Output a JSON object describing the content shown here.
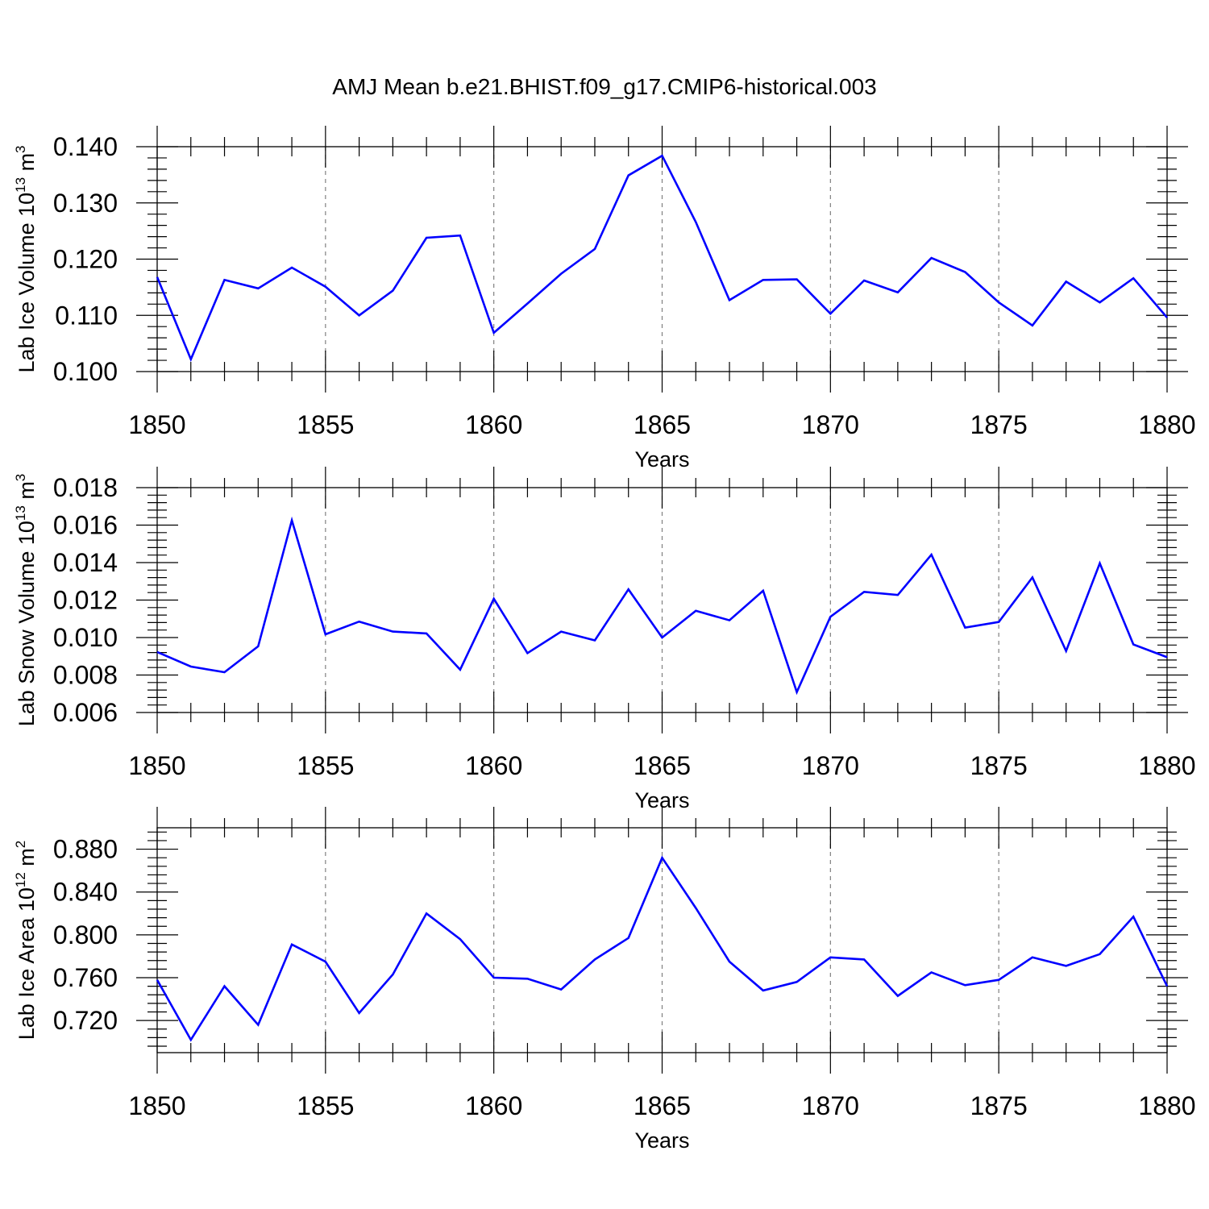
{
  "title": "AMJ Mean b.e21.BHIST.f09_g17.CMIP6-historical.003",
  "colors": {
    "line": "#0000ff",
    "axis": "#000000",
    "grid": "#808080"
  },
  "chart_data": [
    {
      "type": "line",
      "xlabel": "Years",
      "ylabel": {
        "text": "Lab Ice Volume 10",
        "exp": "13",
        "unit": " m",
        "unit_exp": "3"
      },
      "xlim": [
        1850,
        1880
      ],
      "ylim": [
        0.1,
        0.14
      ],
      "xticks": [
        1850,
        1855,
        1860,
        1865,
        1870,
        1875,
        1880
      ],
      "xtick_labels": [
        "1850",
        "1855",
        "1860",
        "1865",
        "1870",
        "1875",
        "1880"
      ],
      "yticks": [
        0.1,
        0.11,
        0.12,
        0.13,
        0.14
      ],
      "ytick_labels": [
        "0.100",
        "0.110",
        "0.120",
        "0.130",
        "0.140"
      ],
      "grid": "vertical dashed at major x ticks",
      "x": [
        1850,
        1851,
        1852,
        1853,
        1854,
        1855,
        1856,
        1857,
        1858,
        1859,
        1860,
        1861,
        1862,
        1863,
        1864,
        1865,
        1866,
        1867,
        1868,
        1869,
        1870,
        1871,
        1872,
        1873,
        1874,
        1875,
        1876,
        1877,
        1878,
        1879,
        1880
      ],
      "values": [
        0.1168,
        0.1022,
        0.1163,
        0.1148,
        0.1185,
        0.1151,
        0.11,
        0.1144,
        0.1238,
        0.1242,
        0.1069,
        0.1121,
        0.1174,
        0.1218,
        0.1349,
        0.1384,
        0.1266,
        0.1127,
        0.1163,
        0.1164,
        0.1103,
        0.1162,
        0.1141,
        0.1202,
        0.1177,
        0.1123,
        0.1082,
        0.116,
        0.1123,
        0.1166,
        0.1096
      ]
    },
    {
      "type": "line",
      "xlabel": "Years",
      "ylabel": {
        "text": "Lab Snow Volume 10",
        "exp": "13",
        "unit": " m",
        "unit_exp": "3"
      },
      "xlim": [
        1850,
        1880
      ],
      "ylim": [
        0.006,
        0.018
      ],
      "xticks": [
        1850,
        1855,
        1860,
        1865,
        1870,
        1875,
        1880
      ],
      "xtick_labels": [
        "1850",
        "1855",
        "1860",
        "1865",
        "1870",
        "1875",
        "1880"
      ],
      "yticks": [
        0.006,
        0.008,
        0.01,
        0.012,
        0.014,
        0.016,
        0.018
      ],
      "ytick_labels": [
        "0.006",
        "0.008",
        "0.010",
        "0.012",
        "0.014",
        "0.016",
        "0.018"
      ],
      "grid": "vertical dashed at major x ticks",
      "x": [
        1850,
        1851,
        1852,
        1853,
        1854,
        1855,
        1856,
        1857,
        1858,
        1859,
        1860,
        1861,
        1862,
        1863,
        1864,
        1865,
        1866,
        1867,
        1868,
        1869,
        1870,
        1871,
        1872,
        1873,
        1874,
        1875,
        1876,
        1877,
        1878,
        1879,
        1880
      ],
      "values": [
        0.00923,
        0.00845,
        0.00815,
        0.00953,
        0.01626,
        0.01017,
        0.01085,
        0.01032,
        0.01022,
        0.00829,
        0.01207,
        0.00917,
        0.01032,
        0.00985,
        0.01257,
        0.01,
        0.01143,
        0.01092,
        0.0125,
        0.00709,
        0.01111,
        0.01244,
        0.01227,
        0.01442,
        0.01053,
        0.01083,
        0.01321,
        0.00928,
        0.01396,
        0.00963,
        0.00895
      ]
    },
    {
      "type": "line",
      "xlabel": "Years",
      "ylabel": {
        "text": "Lab Ice Area 10",
        "exp": "12",
        "unit": " m",
        "unit_exp": "2"
      },
      "xlim": [
        1850,
        1880
      ],
      "ylim": [
        0.69,
        0.9
      ],
      "xticks": [
        1850,
        1855,
        1860,
        1865,
        1870,
        1875,
        1880
      ],
      "xtick_labels": [
        "1850",
        "1855",
        "1860",
        "1865",
        "1870",
        "1875",
        "1880"
      ],
      "yticks": [
        0.72,
        0.76,
        0.8,
        0.84,
        0.88
      ],
      "ytick_labels": [
        "0.720",
        "0.760",
        "0.800",
        "0.840",
        "0.880"
      ],
      "grid": "vertical dashed at major x ticks",
      "x": [
        1850,
        1851,
        1852,
        1853,
        1854,
        1855,
        1856,
        1857,
        1858,
        1859,
        1860,
        1861,
        1862,
        1863,
        1864,
        1865,
        1866,
        1867,
        1868,
        1869,
        1870,
        1871,
        1872,
        1873,
        1874,
        1875,
        1876,
        1877,
        1878,
        1879,
        1880
      ],
      "values": [
        0.758,
        0.702,
        0.752,
        0.716,
        0.791,
        0.775,
        0.727,
        0.763,
        0.82,
        0.796,
        0.76,
        0.759,
        0.749,
        0.777,
        0.797,
        0.872,
        0.825,
        0.775,
        0.748,
        0.756,
        0.779,
        0.777,
        0.743,
        0.765,
        0.753,
        0.758,
        0.779,
        0.771,
        0.782,
        0.817,
        0.752
      ]
    }
  ]
}
